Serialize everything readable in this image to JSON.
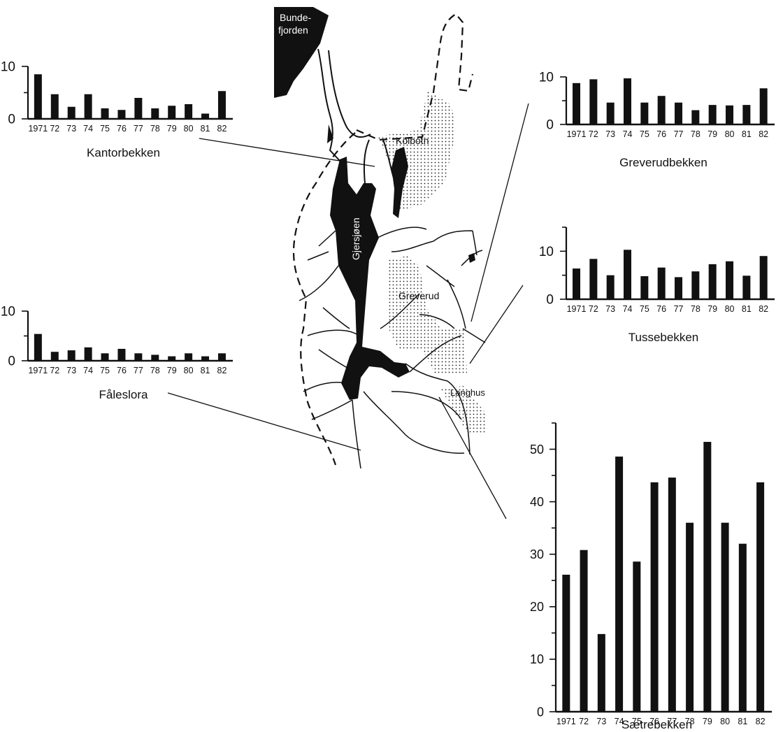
{
  "map": {
    "labels": {
      "bundefjorden_line1": "Bunde-",
      "bundefjorden_line2": "fjorden",
      "kolbotn": "Kolbotn",
      "gjersjoen": "Gjersjøen",
      "greverud": "Greverud",
      "langhus": "Langhus"
    }
  },
  "chart_data": [
    {
      "type": "bar",
      "title": "Kantorbekken",
      "categories": [
        "1971",
        "72",
        "73",
        "74",
        "75",
        "76",
        "77",
        "78",
        "79",
        "80",
        "81",
        "82"
      ],
      "values": [
        8.5,
        4.7,
        2.3,
        4.7,
        2.0,
        1.7,
        4.0,
        2.0,
        2.5,
        2.8,
        1.0,
        5.3
      ],
      "ylim": [
        0,
        10
      ],
      "yticks": [
        "0",
        "10"
      ],
      "grid": false,
      "legend": "none"
    },
    {
      "type": "bar",
      "title": "Fåleslora",
      "categories": [
        "1971",
        "72",
        "73",
        "74",
        "75",
        "76",
        "77",
        "78",
        "79",
        "80",
        "81",
        "82"
      ],
      "values": [
        5.4,
        1.8,
        2.1,
        2.7,
        1.5,
        2.4,
        1.5,
        1.2,
        0.9,
        1.5,
        0.9,
        1.5
      ],
      "ylim": [
        0,
        10
      ],
      "yticks": [
        "0",
        "10"
      ],
      "grid": false,
      "legend": "none"
    },
    {
      "type": "bar",
      "title": "Greverudbekken",
      "categories": [
        "1971",
        "72",
        "73",
        "74",
        "75",
        "76",
        "77",
        "78",
        "79",
        "80",
        "81",
        "82"
      ],
      "values": [
        8.7,
        9.5,
        4.6,
        9.7,
        4.6,
        6.0,
        4.6,
        3.0,
        4.1,
        4.0,
        4.1,
        7.6
      ],
      "ylim": [
        0,
        10
      ],
      "yticks": [
        "0",
        "10"
      ],
      "grid": false,
      "legend": "none"
    },
    {
      "type": "bar",
      "title": "Tussebekken",
      "categories": [
        "1971",
        "72",
        "73",
        "74",
        "75",
        "76",
        "77",
        "78",
        "79",
        "80",
        "81",
        "82"
      ],
      "values": [
        6.4,
        8.4,
        5.0,
        10.3,
        4.8,
        6.6,
        4.6,
        5.8,
        7.3,
        7.9,
        4.9,
        9.0
      ],
      "ylim": [
        0,
        15
      ],
      "yticks": [
        "0",
        "10"
      ],
      "grid": false,
      "legend": "none"
    },
    {
      "type": "bar",
      "title": "Sætrebekken",
      "categories": [
        "1971",
        "72",
        "73",
        "74",
        "75",
        "76",
        "77",
        "78",
        "79",
        "80",
        "81",
        "82"
      ],
      "values": [
        26.1,
        30.8,
        14.8,
        48.6,
        28.6,
        43.7,
        44.6,
        36.0,
        51.4,
        36.0,
        32.0,
        43.7
      ],
      "ylim": [
        0,
        55
      ],
      "yticks": [
        "0",
        "10",
        "20",
        "30",
        "40",
        "50"
      ],
      "grid": false,
      "legend": "none"
    }
  ]
}
